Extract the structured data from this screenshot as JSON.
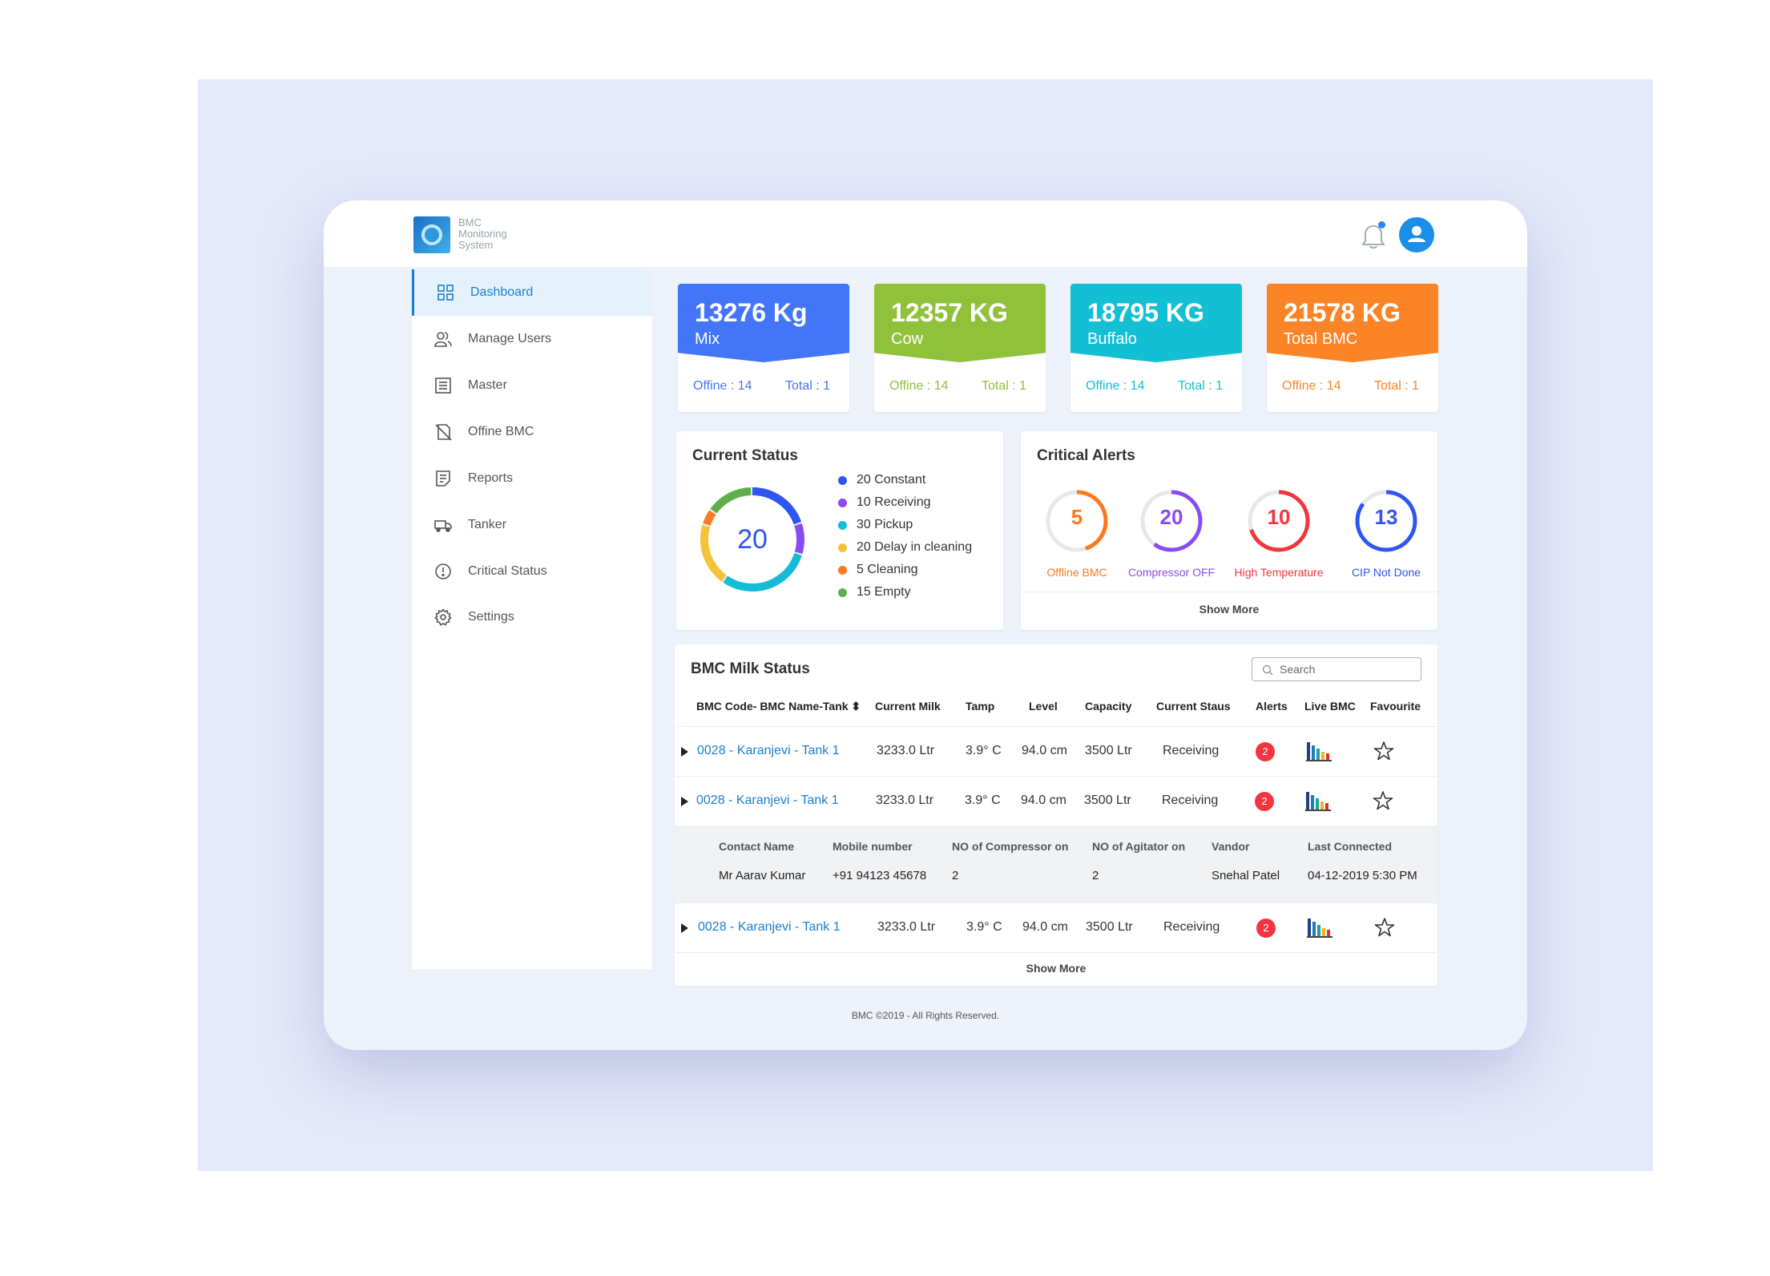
{
  "app": {
    "title_lines": [
      "BMC",
      "Monitoring",
      "System"
    ]
  },
  "sidebar": {
    "items": [
      {
        "label": "Dashboard",
        "icon": "grid-icon"
      },
      {
        "label": "Manage Users",
        "icon": "users-icon"
      },
      {
        "label": "Master",
        "icon": "list-icon"
      },
      {
        "label": "Offine BMC",
        "icon": "offline-icon"
      },
      {
        "label": "Reports",
        "icon": "report-icon"
      },
      {
        "label": "Tanker",
        "icon": "truck-icon"
      },
      {
        "label": "Critical Status",
        "icon": "alert-circle-icon"
      },
      {
        "label": "Settings",
        "icon": "gear-icon"
      }
    ]
  },
  "stats": [
    {
      "value": "13276 Kg",
      "label": "Mix",
      "offline": "Offine : 14",
      "total": "Total : 1",
      "color": "#4275f7"
    },
    {
      "value": "12357 KG",
      "label": "Cow",
      "offline": "Offine : 14",
      "total": "Total : 1",
      "color": "#8fc13a"
    },
    {
      "value": "18795 KG",
      "label": "Buffalo",
      "offline": "Offine : 14",
      "total": "Total : 1",
      "color": "#12bfd3"
    },
    {
      "value": "21578 KG",
      "label": "Total BMC",
      "offline": "Offine : 14",
      "total": "Total : 1",
      "color": "#fb8427"
    }
  ],
  "current_status": {
    "title": "Current Status",
    "center": "20",
    "legend": [
      {
        "label": "20 Constant",
        "color": "#2f55f2",
        "value": 20
      },
      {
        "label": "10 Receiving",
        "color": "#8a4bf0",
        "value": 10
      },
      {
        "label": "30 Pickup",
        "color": "#15bcd6",
        "value": 30
      },
      {
        "label": "20 Delay in cleaning",
        "color": "#f6c23a",
        "value": 20
      },
      {
        "label": "5 Cleaning",
        "color": "#fb7a1f",
        "value": 5
      },
      {
        "label": "15 Empty",
        "color": "#5fae4a",
        "value": 15
      }
    ]
  },
  "critical_alerts": {
    "title": "Critical Alerts",
    "show_more": "Show More",
    "items": [
      {
        "num": "5",
        "label": "Offline BMC",
        "color": "#fb7a1f",
        "fraction": 0.45
      },
      {
        "num": "20",
        "label": "Compressor OFF",
        "color": "#8a4bf0",
        "fraction": 0.6
      },
      {
        "num": "10",
        "label": "High Temperature",
        "color": "#f2353f",
        "fraction": 0.7
      },
      {
        "num": "13",
        "label": "CIP Not Done",
        "color": "#2f55f2",
        "fraction": 0.85
      }
    ]
  },
  "milk_status": {
    "title": "BMC Milk Status",
    "search_placeholder": "Search",
    "columns": [
      "BMC Code- BMC Name-Tank",
      "Current Milk",
      "Tamp",
      "Level",
      "Capacity",
      "Current Staus",
      "Alerts",
      "Live BMC",
      "Favourite"
    ],
    "rows": [
      {
        "code": "0028 - Karanjevi - Tank 1",
        "milk": "3233.0 Ltr",
        "temp": "3.9° C",
        "level": "94.0 cm",
        "capacity": "3500 Ltr",
        "status": "Receiving",
        "alerts": "2"
      },
      {
        "code": "0028 - Karanjevi - Tank 1",
        "milk": "3233.0 Ltr",
        "temp": "3.9° C",
        "level": "94.0 cm",
        "capacity": "3500 Ltr",
        "status": "Receiving",
        "alerts": "2"
      },
      {
        "code": "0028 - Karanjevi - Tank 1",
        "milk": "3233.0 Ltr",
        "temp": "3.9° C",
        "level": "94.0 cm",
        "capacity": "3500 Ltr",
        "status": "Receiving",
        "alerts": "2"
      }
    ],
    "detail": {
      "headers": [
        "Contact Name",
        "Mobile number",
        "NO of Compressor on",
        "NO of Agitator on",
        "Vandor",
        "Last Connected"
      ],
      "values": [
        "Mr Aarav Kumar",
        "+91 94123 45678",
        "2",
        "2",
        "Snehal Patel",
        "04-12-2019 5:30 PM"
      ]
    },
    "show_more": "Show More"
  },
  "footer": "BMC ©2019 - All Rights Reserved."
}
